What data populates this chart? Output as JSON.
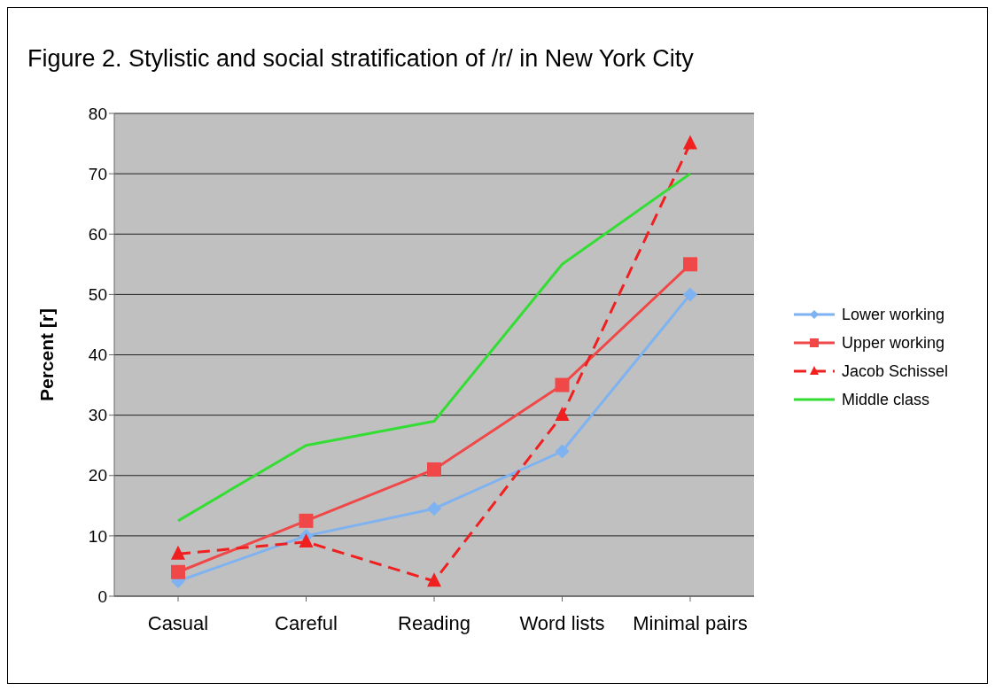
{
  "chart_data": {
    "type": "line",
    "title": "Figure 2. Stylistic and social stratification of /r/ in New York City",
    "ylabel": "Percent [r]",
    "categories": [
      "Casual",
      "Careful",
      "Reading",
      "Word lists",
      "Minimal pairs"
    ],
    "ylim": [
      0,
      80
    ],
    "yticks": [
      0,
      10,
      20,
      30,
      40,
      50,
      60,
      70,
      80
    ],
    "grid": "y",
    "legend": "right",
    "series": [
      {
        "name": "Lower working",
        "color": "#7fb2f0",
        "values": [
          2.5,
          10,
          14.5,
          24,
          50
        ],
        "marker": "diamond",
        "line_style": "solid"
      },
      {
        "name": "Upper working",
        "color": "#f04848",
        "values": [
          4,
          12.5,
          21,
          35,
          55
        ],
        "marker": "square",
        "line_style": "solid"
      },
      {
        "name": "Jacob Schissel",
        "color": "#f02020",
        "values": [
          7,
          9,
          2.5,
          30,
          75
        ],
        "marker": "triangle",
        "line_style": "dashed"
      },
      {
        "name": "Middle class",
        "color": "#33dd33",
        "values": [
          12.5,
          25,
          29,
          55,
          70
        ],
        "marker": "none",
        "line_style": "solid"
      }
    ]
  }
}
